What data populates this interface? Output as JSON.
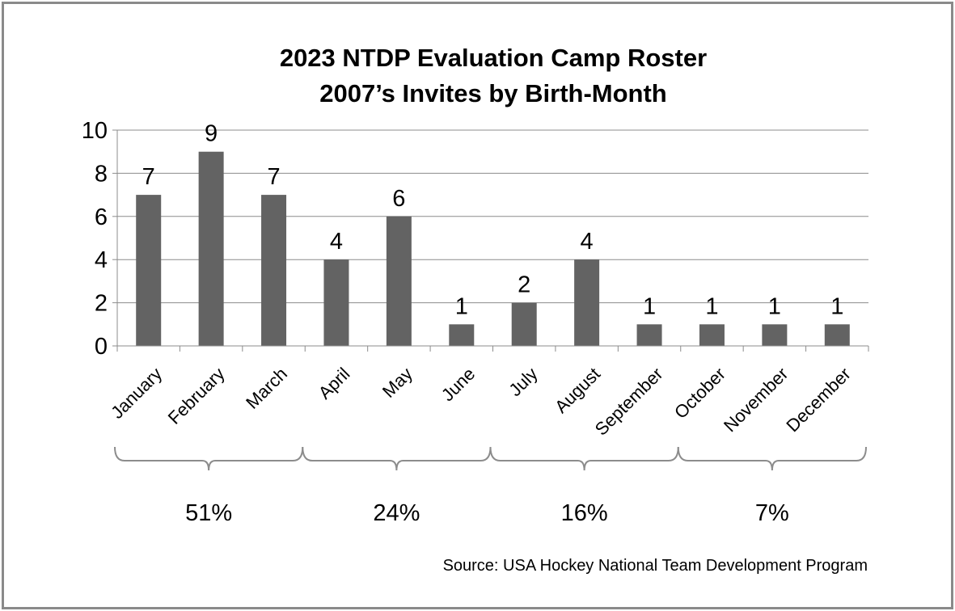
{
  "chart_data": {
    "type": "bar",
    "title": "2023 NTDP Evaluation Camp Roster",
    "subtitle": "2007’s Invites by Birth-Month",
    "categories": [
      "January",
      "February",
      "March",
      "April",
      "May",
      "June",
      "July",
      "August",
      "September",
      "October",
      "November",
      "December"
    ],
    "values": [
      7,
      9,
      7,
      4,
      6,
      1,
      2,
      4,
      1,
      1,
      1,
      1
    ],
    "ylim": [
      0,
      10
    ],
    "yticks": [
      "0",
      "2",
      "4",
      "6",
      "8",
      "10"
    ],
    "grid": true,
    "bar_color": "#636363",
    "groups": [
      {
        "label": "51%",
        "start": 0,
        "end": 2
      },
      {
        "label": "24%",
        "start": 3,
        "end": 5
      },
      {
        "label": "16%",
        "start": 6,
        "end": 8
      },
      {
        "label": "7%",
        "start": 9,
        "end": 11
      }
    ],
    "source": "Source: USA Hockey National Team Development Program"
  }
}
